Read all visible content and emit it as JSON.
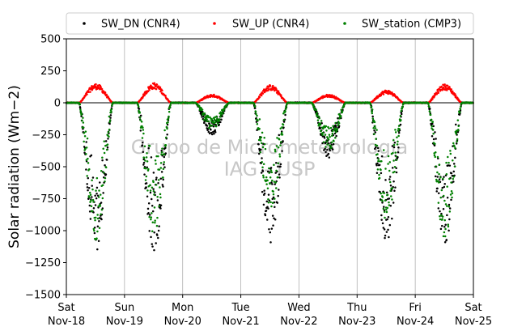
{
  "chart_data": {
    "type": "scatter",
    "title": "",
    "xlabel": "",
    "ylabel": "Solar radiation (Wm−2)",
    "ylim": [
      -1500,
      500
    ],
    "yticks": [
      500,
      250,
      0,
      -250,
      -500,
      -750,
      -1000,
      -1250,
      -1500
    ],
    "ytick_labels": [
      "500",
      "250",
      "0",
      "−250",
      "−500",
      "−750",
      "−1000",
      "−1250",
      "−1500"
    ],
    "xlim": [
      "2023-11-18",
      "2023-11-25"
    ],
    "xticks": [
      {
        "day": "Sat",
        "date": "Nov-18"
      },
      {
        "day": "Sun",
        "date": "Nov-19"
      },
      {
        "day": "Mon",
        "date": "Nov-20"
      },
      {
        "day": "Tue",
        "date": "Nov-21"
      },
      {
        "day": "Wed",
        "date": "Nov-22"
      },
      {
        "day": "Thu",
        "date": "Nov-23"
      },
      {
        "day": "Fri",
        "date": "Nov-24"
      },
      {
        "day": "Sat",
        "date": "Nov-25"
      }
    ],
    "grid": "vertical",
    "legend": {
      "placement": "top-center",
      "columns": 3
    },
    "watermark": [
      "Grupo de Micrometeorologia",
      "IAG - USP"
    ],
    "series": [
      {
        "name": "SW_DN (CNR4)",
        "color": "#000000",
        "daily_extremes": [
          {
            "day": "2023-11-18",
            "min": -1160
          },
          {
            "day": "2023-11-19",
            "min": -1160
          },
          {
            "day": "2023-11-20",
            "min": -250
          },
          {
            "day": "2023-11-21",
            "min": -1110
          },
          {
            "day": "2023-11-22",
            "min": -430
          },
          {
            "day": "2023-11-23",
            "min": -1100
          },
          {
            "day": "2023-11-24",
            "min": -1100
          }
        ]
      },
      {
        "name": "SW_UP (CNR4)",
        "color": "#ff0000",
        "daily_extremes": [
          {
            "day": "2023-11-18",
            "max": 150
          },
          {
            "day": "2023-11-19",
            "max": 155
          },
          {
            "day": "2023-11-20",
            "max": 65
          },
          {
            "day": "2023-11-21",
            "max": 140
          },
          {
            "day": "2023-11-22",
            "max": 65
          },
          {
            "day": "2023-11-23",
            "max": 100
          },
          {
            "day": "2023-11-24",
            "max": 145
          }
        ]
      },
      {
        "name": "SW_station (CMP3)",
        "color": "#008000",
        "daily_extremes": [
          {
            "day": "2023-11-18",
            "min": -1080
          },
          {
            "day": "2023-11-19",
            "min": -1030
          },
          {
            "day": "2023-11-20",
            "min": -210
          },
          {
            "day": "2023-11-21",
            "min": -840
          },
          {
            "day": "2023-11-22",
            "min": -380
          },
          {
            "day": "2023-11-23",
            "min": -920
          },
          {
            "day": "2023-11-24",
            "min": -1060
          }
        ]
      }
    ]
  }
}
